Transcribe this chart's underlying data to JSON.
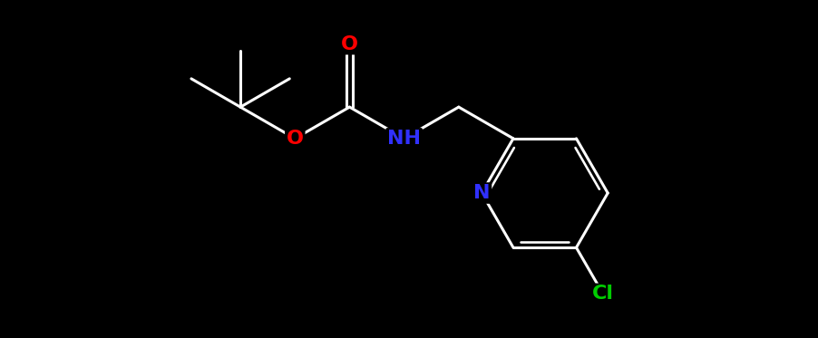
{
  "background_color": "#000000",
  "bond_color": "#ffffff",
  "bond_width": 2.2,
  "atom_colors": {
    "O": "#ff0000",
    "N_amine": "#3030ff",
    "N_pyridine": "#3030ff",
    "Cl": "#00cc00",
    "C": "#ffffff"
  },
  "font_size_atom": 16,
  "fig_width": 9.02,
  "fig_height": 3.73,
  "dpi": 100,
  "bl": 1.0
}
